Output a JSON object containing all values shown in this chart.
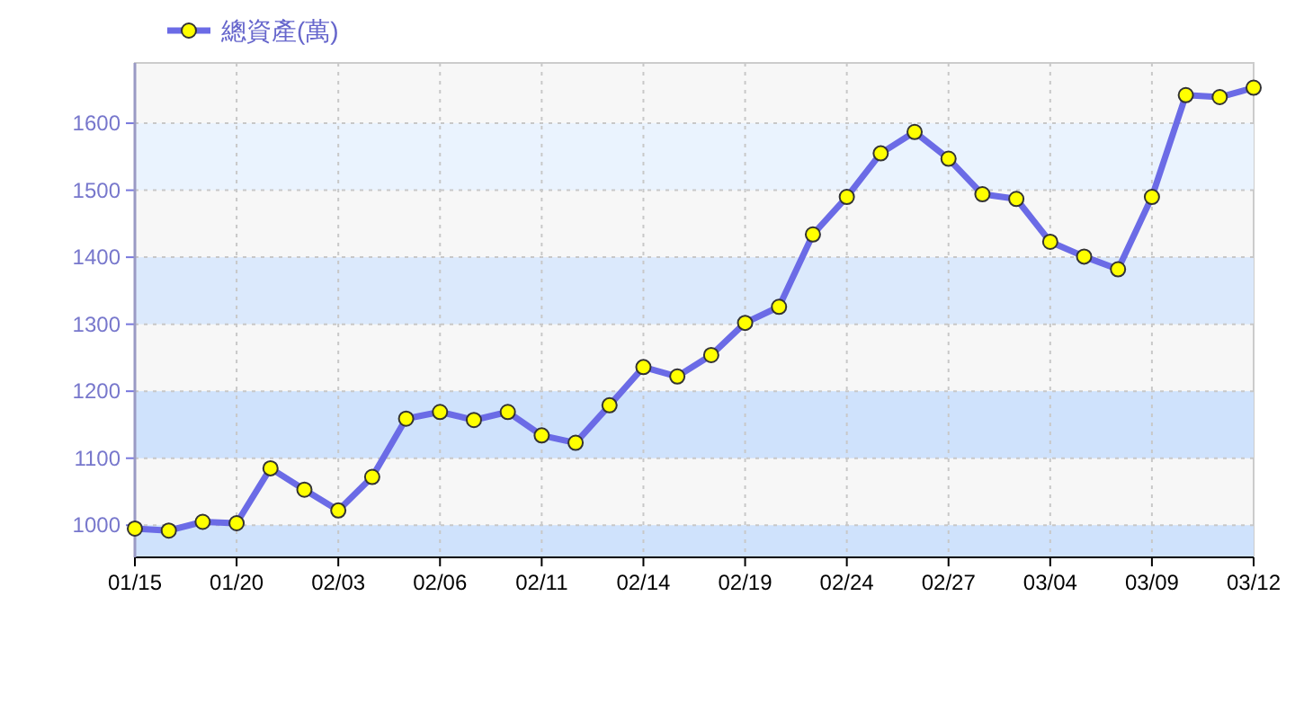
{
  "chart_data": {
    "type": "line",
    "categories": [
      "01/15",
      null,
      null,
      "01/20",
      null,
      null,
      "02/03",
      null,
      null,
      "02/06",
      null,
      null,
      "02/11",
      null,
      null,
      "02/14",
      null,
      null,
      "02/19",
      null,
      null,
      "02/24",
      null,
      null,
      "02/27",
      null,
      null,
      "03/04",
      null,
      null,
      "03/09",
      null,
      null,
      "03/12"
    ],
    "series": [
      {
        "name": "總資產(萬)",
        "color": "#6b6be6",
        "values": [
          995,
          992,
          1005,
          1003,
          1085,
          1053,
          1022,
          1072,
          1159,
          1169,
          1157,
          1169,
          1134,
          1123,
          1179,
          1236,
          1222,
          1254,
          1302,
          1326,
          1434,
          1490,
          1555,
          1587,
          1547,
          1494,
          1487,
          1423,
          1401,
          1382,
          1490,
          1642,
          1639,
          1653
        ]
      }
    ],
    "ylim": [
      952,
      1690
    ],
    "yticks": [
      1000,
      1100,
      1200,
      1300,
      1400,
      1500,
      1600
    ],
    "bands": [
      {
        "axis": "y",
        "from": 952,
        "to": 1000,
        "color": "#cfe2fc"
      },
      {
        "axis": "y",
        "from": 1100,
        "to": 1200,
        "color": "#cfe2fc"
      },
      {
        "axis": "y",
        "from": 1300,
        "to": 1400,
        "color": "#dbe9fc"
      },
      {
        "axis": "y",
        "from": 1500,
        "to": 1600,
        "color": "#eaf3fe"
      }
    ],
    "grid": true,
    "legend": "top left",
    "marker": "circle",
    "line_style": "solid"
  }
}
